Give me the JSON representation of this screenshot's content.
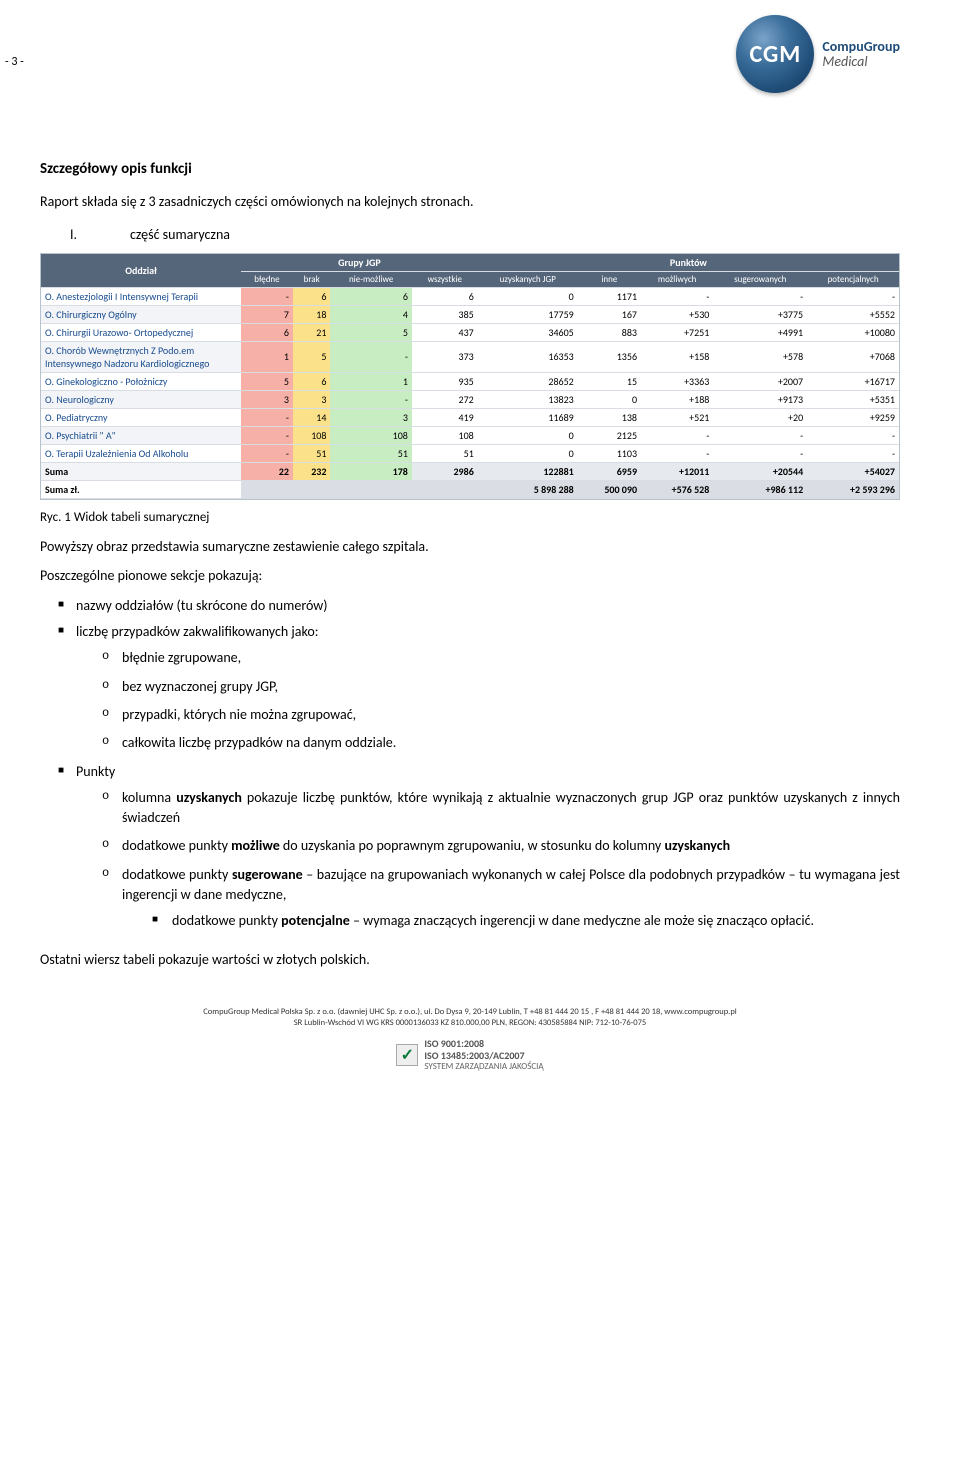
{
  "page_number": "- 3 -",
  "logo": {
    "abbr": "CGM",
    "name": "CompuGroup",
    "sub": "Medical"
  },
  "section_title": "Szczegółowy opis funkcji",
  "intro": "Raport składa się z 3 zasadniczych części omówionych na kolejnych stronach.",
  "part_no": "I.",
  "part_label": "część sumaryczna",
  "table": {
    "head_group1": "Oddział",
    "head_group2": "Grupy JGP",
    "head_group3": "Punktów",
    "sub": [
      "błędne",
      "brak",
      "nie-możliwe",
      "wszystkie",
      "uzyskanych JGP",
      "inne",
      "możliwych",
      "sugerowanych",
      "potencjalnych"
    ],
    "rows": [
      {
        "name": "O. Anestezjologii I Intensywnej Terapii",
        "r": "-",
        "b": "6",
        "n": "6",
        "w": "6",
        "uj": "0",
        "in": "1171",
        "m": "-",
        "s": "-",
        "p": "-"
      },
      {
        "name": "O. Chirurgiczny Ogólny",
        "r": "7",
        "b": "18",
        "n": "4",
        "w": "385",
        "uj": "17759",
        "in": "167",
        "m": "+530",
        "s": "+3775",
        "p": "+5552"
      },
      {
        "name": "O. Chirurgii Urazowo- Ortopedycznej",
        "r": "6",
        "b": "21",
        "n": "5",
        "w": "437",
        "uj": "34605",
        "in": "883",
        "m": "+7251",
        "s": "+4991",
        "p": "+10080"
      },
      {
        "name": "O. Chorób Wewnętrznych Z Podo.em Intensywnego Nadzoru Kardiologicznego",
        "r": "1",
        "b": "5",
        "n": "-",
        "w": "373",
        "uj": "16353",
        "in": "1356",
        "m": "+158",
        "s": "+578",
        "p": "+7068"
      },
      {
        "name": "O. Ginekologiczno - Położniczy",
        "r": "5",
        "b": "6",
        "n": "1",
        "w": "935",
        "uj": "28652",
        "in": "15",
        "m": "+3363",
        "s": "+2007",
        "p": "+16717"
      },
      {
        "name": "O. Neurologiczny",
        "r": "3",
        "b": "3",
        "n": "-",
        "w": "272",
        "uj": "13823",
        "in": "0",
        "m": "+188",
        "s": "+9173",
        "p": "+5351"
      },
      {
        "name": "O. Pediatryczny",
        "r": "-",
        "b": "14",
        "n": "3",
        "w": "419",
        "uj": "11689",
        "in": "138",
        "m": "+521",
        "s": "+20",
        "p": "+9259"
      },
      {
        "name": "O. Psychiatrii \" A\"",
        "r": "-",
        "b": "108",
        "n": "108",
        "w": "108",
        "uj": "0",
        "in": "2125",
        "m": "-",
        "s": "-",
        "p": "-"
      },
      {
        "name": "O. Terapii Uzależnienia Od Alkoholu",
        "r": "-",
        "b": "51",
        "n": "51",
        "w": "51",
        "uj": "0",
        "in": "1103",
        "m": "-",
        "s": "-",
        "p": "-"
      }
    ],
    "sum": {
      "name": "Suma",
      "r": "22",
      "b": "232",
      "n": "178",
      "w": "2986",
      "uj": "122881",
      "in": "6959",
      "m": "+12011",
      "s": "+20544",
      "p": "+54027"
    },
    "sumzl": {
      "name": "Suma zł.",
      "r": "",
      "b": "",
      "n": "",
      "w": "",
      "uj": "5 898 288",
      "in": "500 090",
      "m": "+576 528",
      "s": "+986 112",
      "p": "+2 593 296"
    }
  },
  "caption": "Ryc. 1 Widok tabeli sumarycznej",
  "para1": "Powyższy obraz przedstawia sumaryczne zestawienie całego szpitala.",
  "para2": "Poszczególne pionowe sekcje pokazują:",
  "bul1": "nazwy oddziałów (tu skrócone do numerów)",
  "bul2": "liczbę przypadków zakwalifikowanych jako:",
  "sub_a": "błędnie zgrupowane,",
  "sub_b": "bez wyznaczonej grupy JGP,",
  "sub_c": "przypadki, których nie można zgrupować,",
  "sub_d": "całkowita liczbę przypadków na danym oddziale.",
  "bul3": "Punkty",
  "pk_a_pre": "kolumna ",
  "pk_a_b": "uzyskanych",
  "pk_a_post": " pokazuje liczbę punktów, które wynikają z aktualnie wyznaczonych grup JGP oraz punktów uzyskanych z innych świadczeń",
  "pk_b_pre": "dodatkowe punkty ",
  "pk_b_b": "możliwe",
  "pk_b_mid": " do uzyskania po poprawnym zgrupowaniu, w stosunku do kolumny ",
  "pk_b_b2": "uzyskanych",
  "pk_c_pre": "dodatkowe punkty ",
  "pk_c_b": "sugerowane",
  "pk_c_post": " – bazujące na grupowaniach wykonanych w całej Polsce dla podobnych przypadków – tu wymagana jest ingerencji w dane medyczne,",
  "pk_d_pre": "dodatkowe punkty ",
  "pk_d_b": "potencjalne",
  "pk_d_post": " – wymaga znaczących ingerencji w dane medyczne ale może się znacząco opłacić.",
  "closing": "Ostatni wiersz tabeli pokazuje wartości w złotych polskich.",
  "footer_l1": "CompuGroup Medical Polska Sp. z o.o. (dawniej UHC Sp. z o.o.),  ul. Do Dysa 9, 20-149 Lublin, T +48 81 444 20 15 , F +48 81 444 20 18, www.compugroup.pl",
  "footer_l2": "SR Lublin-Wschód VI WG KRS 0000136033 KZ 810.000,00 PLN, REGON: 430585884 NIP: 712-10-76-075",
  "iso1": "ISO 9001:2008",
  "iso2": "ISO 13485:2003/AC2007",
  "iso3": "SYSTEM ZARZĄDZANIA JAKOŚCIĄ"
}
